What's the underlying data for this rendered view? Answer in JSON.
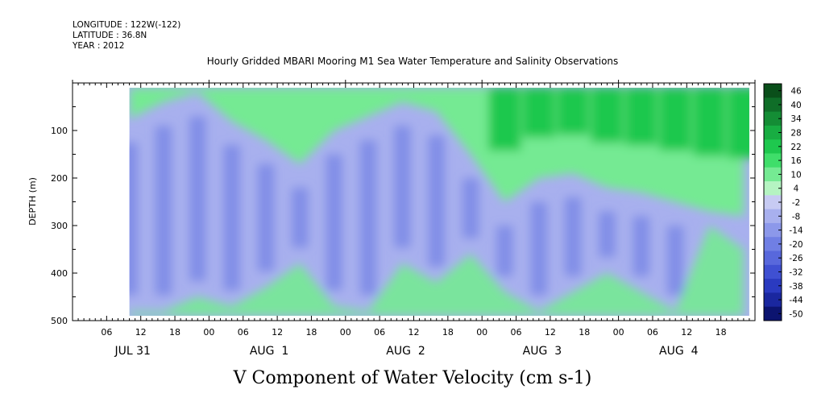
{
  "meta": {
    "longitude": "LONGITUDE : 122W(-122)",
    "latitude": "LATITUDE : 36.8N",
    "year": "YEAR : 2012"
  },
  "chart_data": {
    "type": "heatmap",
    "title": "Hourly Gridded MBARI Mooring M1 Sea Water Temperature and Salinity Observations",
    "variable_label": "V Component of Water Velocity (cm s-1)",
    "ylabel": "DEPTH (m)",
    "yaxis": {
      "range": [
        500,
        0
      ],
      "ticks": [
        100,
        200,
        300,
        400,
        500
      ],
      "tick_labels": [
        "100",
        "200",
        "300",
        "400",
        "500"
      ]
    },
    "xaxis": {
      "start": "2012-07-31T00:00",
      "end": "2012-08-05T00:00",
      "hour_labels": [
        {
          "t": "2012-07-31T06:00",
          "label": "06"
        },
        {
          "t": "2012-07-31T12:00",
          "label": "12"
        },
        {
          "t": "2012-07-31T18:00",
          "label": "18"
        },
        {
          "t": "2012-08-01T00:00",
          "label": "00"
        },
        {
          "t": "2012-08-01T06:00",
          "label": "06"
        },
        {
          "t": "2012-08-01T12:00",
          "label": "12"
        },
        {
          "t": "2012-08-01T18:00",
          "label": "18"
        },
        {
          "t": "2012-08-02T00:00",
          "label": "00"
        },
        {
          "t": "2012-08-02T06:00",
          "label": "06"
        },
        {
          "t": "2012-08-02T12:00",
          "label": "12"
        },
        {
          "t": "2012-08-02T18:00",
          "label": "18"
        },
        {
          "t": "2012-08-03T00:00",
          "label": "00"
        },
        {
          "t": "2012-08-03T06:00",
          "label": "06"
        },
        {
          "t": "2012-08-03T12:00",
          "label": "12"
        },
        {
          "t": "2012-08-03T18:00",
          "label": "18"
        },
        {
          "t": "2012-08-04T00:00",
          "label": "00"
        },
        {
          "t": "2012-08-04T06:00",
          "label": "06"
        },
        {
          "t": "2012-08-04T12:00",
          "label": "12"
        },
        {
          "t": "2012-08-04T18:00",
          "label": "18"
        }
      ],
      "date_labels": [
        {
          "t": "2012-07-31T12:00",
          "label": "JUL 31"
        },
        {
          "t": "2012-08-01T12:00",
          "label": "AUG  1"
        },
        {
          "t": "2012-08-02T12:00",
          "label": "AUG  2"
        },
        {
          "t": "2012-08-03T12:00",
          "label": "AUG  3"
        },
        {
          "t": "2012-08-04T12:00",
          "label": "AUG  4"
        }
      ]
    },
    "data_extent": {
      "time_start": "2012-07-31T10:00",
      "time_end": "2012-08-04T23:00",
      "depth_top": 10,
      "depth_bottom": 490
    },
    "pattern_points": [
      {
        "t": "2012-07-31T10:00",
        "depth_pos": 75,
        "depth_neg": 480
      },
      {
        "t": "2012-07-31T16:00",
        "depth_pos": 40,
        "depth_neg": 480
      },
      {
        "t": "2012-07-31T22:00",
        "depth_pos": 20,
        "depth_neg": 450
      },
      {
        "t": "2012-08-01T04:00",
        "depth_pos": 80,
        "depth_neg": 470
      },
      {
        "t": "2012-08-01T10:00",
        "depth_pos": 120,
        "depth_neg": 430
      },
      {
        "t": "2012-08-01T16:00",
        "depth_pos": 170,
        "depth_neg": 380
      },
      {
        "t": "2012-08-01T22:00",
        "depth_pos": 100,
        "depth_neg": 470
      },
      {
        "t": "2012-08-02T04:00",
        "depth_pos": 70,
        "depth_neg": 480
      },
      {
        "t": "2012-08-02T10:00",
        "depth_pos": 40,
        "depth_neg": 380
      },
      {
        "t": "2012-08-02T16:00",
        "depth_pos": 60,
        "depth_neg": 420
      },
      {
        "t": "2012-08-02T22:00",
        "depth_pos": 150,
        "depth_neg": 360
      },
      {
        "t": "2012-08-03T04:00",
        "depth_pos": 250,
        "depth_neg": 440
      },
      {
        "t": "2012-08-03T10:00",
        "depth_pos": 200,
        "depth_neg": 480
      },
      {
        "t": "2012-08-03T16:00",
        "depth_pos": 190,
        "depth_neg": 440
      },
      {
        "t": "2012-08-03T22:00",
        "depth_pos": 220,
        "depth_neg": 400
      },
      {
        "t": "2012-08-04T04:00",
        "depth_pos": 230,
        "depth_neg": 440
      },
      {
        "t": "2012-08-04T10:00",
        "depth_pos": 250,
        "depth_neg": 480
      },
      {
        "t": "2012-08-04T16:00",
        "depth_pos": 270,
        "depth_neg": 300
      },
      {
        "t": "2012-08-04T22:00",
        "depth_pos": 280,
        "depth_neg": 350
      }
    ],
    "colorbar": {
      "levels": [
        "46",
        "40",
        "34",
        "28",
        "22",
        "16",
        "10",
        "4",
        "-2",
        "-8",
        "-14",
        "-20",
        "-26",
        "-32",
        "-38",
        "-44",
        "-50"
      ],
      "colors": [
        "#0a4f1a",
        "#0f6e28",
        "#148d35",
        "#18ad42",
        "#1ec84e",
        "#3fde6a",
        "#75ea93",
        "#b5f4c2",
        "#c7cbf3",
        "#a8b0ee",
        "#8c98ea",
        "#707fe4",
        "#5868dc",
        "#3f50d2",
        "#2a3ac0",
        "#1a279f",
        "#0c1470"
      ]
    }
  }
}
